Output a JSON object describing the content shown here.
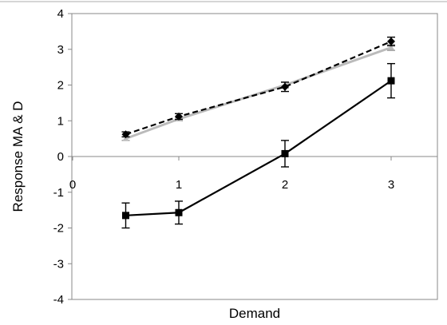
{
  "chart_data": {
    "type": "line",
    "title": "",
    "xlabel": "Demand",
    "ylabel": "Response MA & D",
    "xlim": [
      0,
      3.5
    ],
    "ylim": [
      -4,
      4
    ],
    "x_ticks": [
      0,
      1,
      2,
      3
    ],
    "y_ticks": [
      -4,
      -3,
      -2,
      -1,
      0,
      1,
      2,
      3,
      4
    ],
    "grid": false,
    "legend": "none",
    "series": [
      {
        "style": "dashed",
        "marker": "diamond",
        "color": "#000000",
        "x": [
          0.5,
          1,
          2,
          3
        ],
        "y": [
          0.62,
          1.12,
          1.95,
          3.22
        ],
        "err": [
          0.07,
          0.08,
          0.13,
          0.12
        ]
      },
      {
        "style": "solid",
        "marker": "triangle",
        "color": "#bbbbbb",
        "x": [
          0.5,
          1,
          2,
          3
        ],
        "y": [
          0.5,
          1.05,
          2.0,
          3.05
        ],
        "err": [
          0.05,
          0.05,
          0.08,
          0.08
        ]
      },
      {
        "style": "solid",
        "marker": "square",
        "color": "#000000",
        "x": [
          0.5,
          1,
          2,
          3
        ],
        "y": [
          -1.65,
          -1.57,
          0.08,
          2.12
        ],
        "err": [
          0.35,
          0.32,
          0.37,
          0.48
        ]
      }
    ]
  }
}
